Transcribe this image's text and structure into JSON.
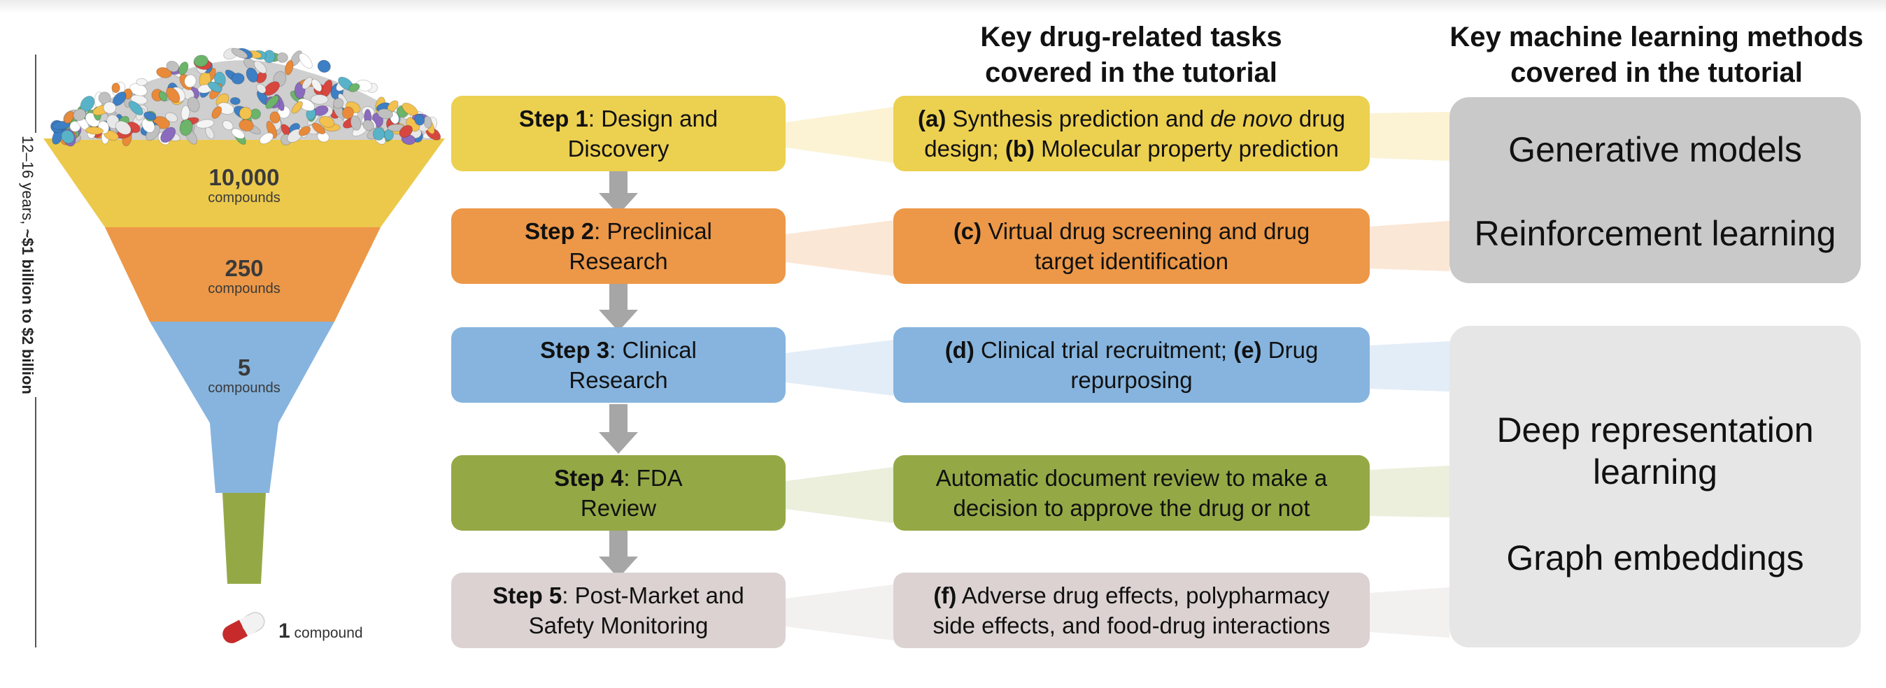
{
  "headers": {
    "tasks": [
      "Key drug-related tasks",
      "covered in the tutorial"
    ],
    "methods": [
      "Key machine learning methods",
      "covered in the tutorial"
    ]
  },
  "timeline_prefix": "12–16 years, ",
  "timeline_cost": "~$1 billion to $2 billion",
  "funnel": {
    "stages": [
      {
        "number": "10,000",
        "unit": "compounds",
        "color": "#ecc94b"
      },
      {
        "number": "250",
        "unit": "compounds",
        "color": "#ec9848"
      },
      {
        "number": "5",
        "unit": "compounds",
        "color": "#86b4de"
      },
      {
        "number": "",
        "unit": "",
        "color": "#94a945"
      }
    ],
    "final_number": "1",
    "final_unit": "compound"
  },
  "steps": [
    {
      "label": "Step 1",
      "rest1": ": Design and",
      "rest2": "Discovery",
      "color": "#ecd050"
    },
    {
      "label": "Step 2",
      "rest1": ": Preclinical",
      "rest2": "Research",
      "color": "#ec9848"
    },
    {
      "label": "Step 3",
      "rest1": ": Clinical",
      "rest2": "Research",
      "color": "#86b4de"
    },
    {
      "label": "Step 4",
      "rest1": ": FDA",
      "rest2": "Review",
      "color": "#94a945"
    },
    {
      "label": "Step 5",
      "rest1": ": Post-Market and",
      "rest2": "Safety Monitoring",
      "color": "#dcd2d2"
    }
  ],
  "tasks": [
    {
      "a_tag": "(a)",
      "a_text_1": " Synthesis prediction and ",
      "a_italic": "de novo",
      "a_text_2": " drug",
      "b_prefix": "design; ",
      "b_tag": "(b)",
      "b_text": " Molecular property prediction"
    },
    {
      "tag": "(c)",
      "line1": " Virtual drug screening and drug",
      "line2": "target identification"
    },
    {
      "tag1": "(d)",
      "text1": " Clinical trial recruitment; ",
      "tag2": "(e)",
      "text2": " Drug",
      "line2": "repurposing"
    },
    {
      "line1": "Automatic document review to make a",
      "line2": "decision to approve the drug or not"
    },
    {
      "tag": "(f)",
      "line1": " Adverse drug effects, polypharmacy",
      "line2": "side effects, and food-drug interactions"
    }
  ],
  "methods": {
    "top": [
      "Generative models",
      "Reinforcement learning"
    ],
    "bottom_1": [
      "Deep representation",
      "learning"
    ],
    "bottom_2": "Graph embeddings"
  },
  "colors": {
    "method_top_bg": "#c9c9c9",
    "method_bottom_bg": "#e6e6e6",
    "arrow": "#a6a6a6"
  }
}
